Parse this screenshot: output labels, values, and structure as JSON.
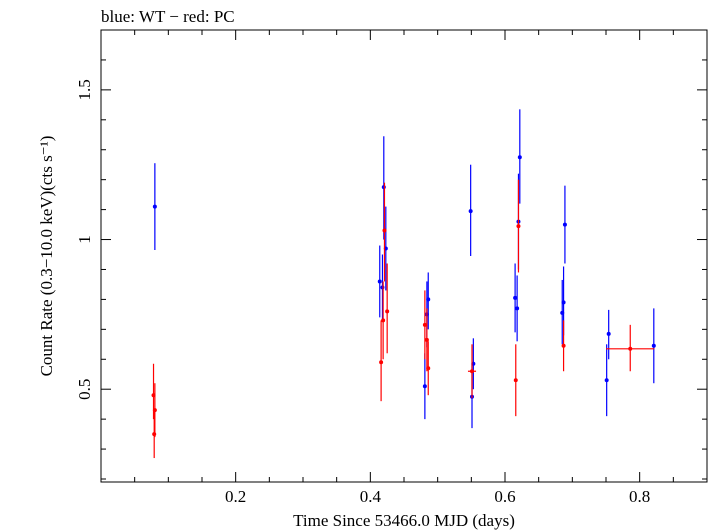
{
  "chart_data": {
    "type": "scatter",
    "title": "blue: WT − red: PC",
    "xlabel": "Time Since 53466.0 MJD (days)",
    "ylabel": "Count Rate (0.3−10.0 keV)(cts s⁻¹)",
    "xlim": [
      0.0,
      0.9
    ],
    "ylim": [
      0.19,
      1.7
    ],
    "x_ticks": [
      {
        "v": 0.2,
        "label": "0.2"
      },
      {
        "v": 0.4,
        "label": "0.4"
      },
      {
        "v": 0.6,
        "label": "0.6"
      },
      {
        "v": 0.8,
        "label": "0.8"
      }
    ],
    "y_ticks": [
      {
        "v": 0.5,
        "label": "0.5"
      },
      {
        "v": 1.0,
        "label": "1"
      },
      {
        "v": 1.5,
        "label": "1.5"
      }
    ],
    "grid": false,
    "series": [
      {
        "name": "WT",
        "color": "#0000ff",
        "points": [
          {
            "x": 0.08,
            "y": 1.11,
            "ylo": 0.965,
            "yhi": 1.255
          },
          {
            "x": 0.414,
            "y": 0.86,
            "ylo": 0.74,
            "yhi": 0.98
          },
          {
            "x": 0.418,
            "y": 0.84,
            "ylo": 0.73,
            "yhi": 0.95
          },
          {
            "x": 0.42,
            "y": 1.175,
            "ylo": 1.0,
            "yhi": 1.345
          },
          {
            "x": 0.423,
            "y": 0.97,
            "ylo": 0.83,
            "yhi": 1.11
          },
          {
            "x": 0.481,
            "y": 0.51,
            "ylo": 0.4,
            "yhi": 0.62
          },
          {
            "x": 0.484,
            "y": 0.75,
            "ylo": 0.64,
            "yhi": 0.86
          },
          {
            "x": 0.486,
            "y": 0.8,
            "ylo": 0.7,
            "yhi": 0.89
          },
          {
            "x": 0.549,
            "y": 1.095,
            "ylo": 0.945,
            "yhi": 1.25
          },
          {
            "x": 0.551,
            "y": 0.475,
            "ylo": 0.37,
            "yhi": 0.585
          },
          {
            "x": 0.553,
            "y": 0.585,
            "ylo": 0.5,
            "yhi": 0.67
          },
          {
            "x": 0.615,
            "y": 0.805,
            "ylo": 0.69,
            "yhi": 0.92
          },
          {
            "x": 0.618,
            "y": 0.77,
            "ylo": 0.66,
            "yhi": 0.88
          },
          {
            "x": 0.62,
            "y": 1.06,
            "ylo": 0.9,
            "yhi": 1.22
          },
          {
            "x": 0.622,
            "y": 1.275,
            "ylo": 1.12,
            "yhi": 1.435
          },
          {
            "x": 0.685,
            "y": 0.755,
            "ylo": 0.65,
            "yhi": 0.865
          },
          {
            "x": 0.687,
            "y": 0.79,
            "ylo": 0.68,
            "yhi": 0.91
          },
          {
            "x": 0.689,
            "y": 1.05,
            "ylo": 0.92,
            "yhi": 1.18
          },
          {
            "x": 0.751,
            "y": 0.53,
            "ylo": 0.41,
            "yhi": 0.65
          },
          {
            "x": 0.754,
            "y": 0.685,
            "ylo": 0.6,
            "yhi": 0.765
          },
          {
            "x": 0.821,
            "y": 0.645,
            "ylo": 0.52,
            "yhi": 0.77
          }
        ]
      },
      {
        "name": "PC",
        "color": "#ff0000",
        "points": [
          {
            "x": 0.078,
            "y": 0.48,
            "ylo": 0.4,
            "yhi": 0.585
          },
          {
            "x": 0.079,
            "y": 0.35,
            "ylo": 0.27,
            "yhi": 0.43
          },
          {
            "x": 0.08,
            "y": 0.43,
            "ylo": 0.34,
            "yhi": 0.52
          },
          {
            "x": 0.416,
            "y": 0.59,
            "ylo": 0.46,
            "yhi": 0.73
          },
          {
            "x": 0.419,
            "y": 0.73,
            "ylo": 0.6,
            "yhi": 0.86
          },
          {
            "x": 0.421,
            "y": 1.03,
            "ylo": 0.86,
            "yhi": 1.19
          },
          {
            "x": 0.425,
            "y": 0.76,
            "ylo": 0.62,
            "yhi": 0.92
          },
          {
            "x": 0.481,
            "y": 0.715,
            "ylo": 0.6,
            "yhi": 0.83
          },
          {
            "x": 0.484,
            "y": 0.665,
            "ylo": 0.56,
            "yhi": 0.77
          },
          {
            "x": 0.486,
            "y": 0.57,
            "ylo": 0.48,
            "yhi": 0.66
          },
          {
            "x": 0.551,
            "y": 0.56,
            "ylo": 0.47,
            "yhi": 0.65,
            "xlo": 0.545,
            "xhi": 0.557
          },
          {
            "x": 0.616,
            "y": 0.53,
            "ylo": 0.41,
            "yhi": 0.65
          },
          {
            "x": 0.62,
            "y": 1.045,
            "ylo": 0.89,
            "yhi": 1.2
          },
          {
            "x": 0.687,
            "y": 0.645,
            "ylo": 0.56,
            "yhi": 0.73
          },
          {
            "x": 0.786,
            "y": 0.635,
            "ylo": 0.56,
            "yhi": 0.715,
            "xlo": 0.75,
            "xhi": 0.822
          }
        ]
      }
    ]
  }
}
